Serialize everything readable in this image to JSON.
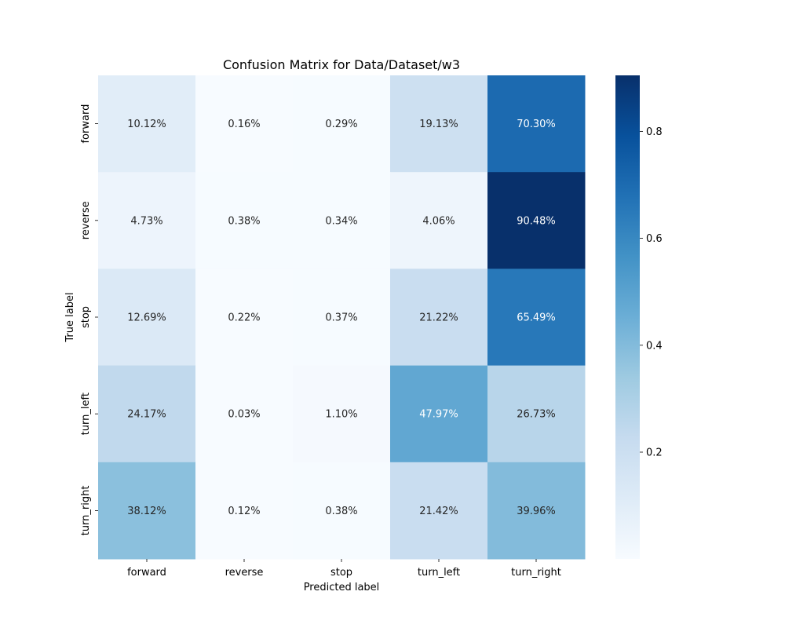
{
  "chart_data": {
    "type": "heatmap",
    "title": "Confusion Matrix for Data/Dataset/w3",
    "xlabel": "Predicted label",
    "ylabel": "True label",
    "x_categories": [
      "forward",
      "reverse",
      "stop",
      "turn_left",
      "turn_right"
    ],
    "y_categories": [
      "forward",
      "reverse",
      "stop",
      "turn_left",
      "turn_right"
    ],
    "values": [
      [
        0.1012,
        0.0016,
        0.0029,
        0.1913,
        0.703
      ],
      [
        0.0473,
        0.0038,
        0.0034,
        0.0406,
        0.9048
      ],
      [
        0.1269,
        0.0022,
        0.0037,
        0.2122,
        0.6549
      ],
      [
        0.2417,
        0.0003,
        0.011,
        0.4797,
        0.2673
      ],
      [
        0.3812,
        0.0012,
        0.0038,
        0.2142,
        0.3996
      ]
    ],
    "annotations": [
      [
        "10.12%",
        "0.16%",
        "0.29%",
        "19.13%",
        "70.30%"
      ],
      [
        "4.73%",
        "0.38%",
        "0.34%",
        "4.06%",
        "90.48%"
      ],
      [
        "12.69%",
        "0.22%",
        "0.37%",
        "21.22%",
        "65.49%"
      ],
      [
        "24.17%",
        "0.03%",
        "1.10%",
        "47.97%",
        "26.73%"
      ],
      [
        "38.12%",
        "0.12%",
        "0.38%",
        "21.42%",
        "39.96%"
      ]
    ],
    "colormap": "Blues",
    "colormap_stops": [
      "#f7fbff",
      "#deebf7",
      "#c6dbef",
      "#9ecae1",
      "#6baed6",
      "#4292c6",
      "#2171b5",
      "#08519c",
      "#08306b"
    ],
    "color_range": [
      0.0003,
      0.9048
    ],
    "colorbar": {
      "ticks": [
        0.2,
        0.4,
        0.6,
        0.8
      ],
      "tick_labels": [
        "0.2",
        "0.4",
        "0.6",
        "0.8"
      ],
      "position": "right"
    },
    "grid": false
  }
}
